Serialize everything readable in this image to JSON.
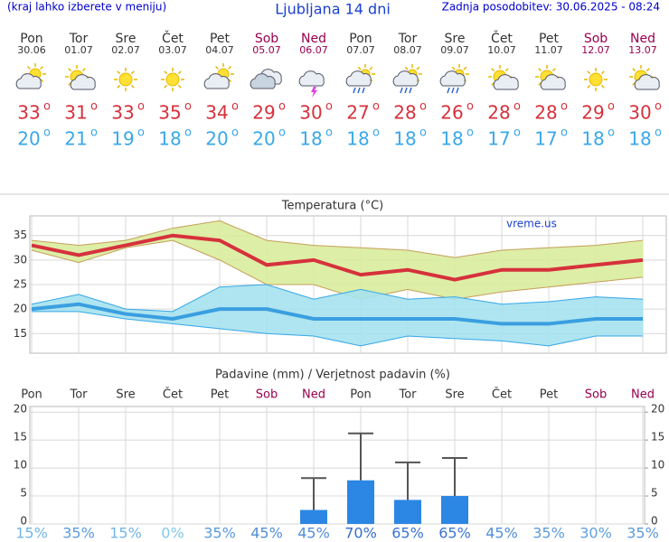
{
  "header": {
    "note": "(kraj lahko izberete v meniju)",
    "title": "Ljubljana 14 dni",
    "updated": "Zadnja posodobitev: 30.06.2025 - 08:24"
  },
  "days": {
    "names": [
      "Pon",
      "Tor",
      "Sre",
      "Čet",
      "Pet",
      "Sob",
      "Ned",
      "Pon",
      "Tor",
      "Sre",
      "Čet",
      "Pet",
      "Sob",
      "Ned"
    ],
    "dates": [
      "30.06",
      "01.07",
      "02.07",
      "03.07",
      "04.07",
      "05.07",
      "06.07",
      "07.07",
      "08.07",
      "09.07",
      "10.07",
      "11.07",
      "12.07",
      "13.07"
    ],
    "max": [
      33,
      31,
      33,
      35,
      34,
      29,
      30,
      27,
      28,
      26,
      28,
      28,
      29,
      30
    ],
    "min": [
      20,
      21,
      19,
      18,
      20,
      20,
      18,
      18,
      18,
      18,
      17,
      17,
      18,
      18
    ],
    "unit": "o"
  },
  "chart_data": [
    {
      "type": "line",
      "title": "Temperatura (°C)",
      "watermark": "vreme.us",
      "categories": [
        null,
        null,
        null,
        null,
        null,
        null,
        null,
        null,
        null,
        null,
        null,
        null,
        null,
        null
      ],
      "series": [
        {
          "kind": "band",
          "color": "#d9ec9c",
          "low": [
            32,
            29.5,
            32.5,
            34,
            30,
            25,
            25,
            22,
            24,
            22,
            23.5,
            24.5,
            25.5,
            26.5
          ],
          "high": [
            34,
            33,
            34,
            36.5,
            38,
            34,
            33,
            32.5,
            32,
            30.5,
            32,
            32.5,
            33,
            34
          ]
        },
        {
          "kind": "band",
          "color": "#a6e2ee",
          "low": [
            19.5,
            19.5,
            18,
            17,
            16,
            15,
            14.5,
            12.5,
            14.5,
            14,
            13.5,
            12.5,
            14.5,
            14.5
          ],
          "high": [
            21,
            23,
            20,
            19.5,
            24.5,
            25,
            22,
            24,
            22,
            22.5,
            21,
            21.5,
            22.5,
            22
          ]
        },
        {
          "kind": "line",
          "color": "#d6313c",
          "values": [
            33,
            31,
            33,
            35,
            34,
            29,
            30,
            27,
            28,
            26,
            28,
            28,
            29,
            30
          ]
        },
        {
          "kind": "line",
          "color": "#3a9fe0",
          "values": [
            20,
            21,
            19,
            18,
            20,
            20,
            18,
            18,
            18,
            18,
            17,
            17,
            18,
            18
          ]
        }
      ],
      "ylim": [
        11,
        39
      ],
      "yticks": [
        15,
        20,
        25,
        30,
        35
      ],
      "grid": true
    },
    {
      "type": "bar",
      "title": "Padavine (mm) / Verjetnost padavin (%)",
      "categories": [
        "Pon",
        "Tor",
        "Sre",
        "Čet",
        "Pet",
        "Sob",
        "Ned",
        "Pon",
        "Tor",
        "Sre",
        "Čet",
        "Pet",
        "Sob",
        "Ned"
      ],
      "values": [
        0,
        0,
        0,
        0,
        0,
        0,
        2.5,
        7.8,
        4.3,
        5.0,
        0,
        0,
        0,
        0
      ],
      "max_values": [
        null,
        null,
        null,
        null,
        null,
        null,
        8.2,
        16.2,
        11,
        11.8,
        null,
        null,
        null,
        null
      ],
      "color": "#2b87e3",
      "probability": {
        "values": [
          15,
          35,
          15,
          0,
          35,
          45,
          45,
          70,
          65,
          65,
          45,
          35,
          30,
          35
        ],
        "value_labels": [
          "15%",
          "35%",
          "15%",
          "0%",
          "35%",
          "45%",
          "45%",
          "70%",
          "65%",
          "65%",
          "45%",
          "35%",
          "30%",
          "35%"
        ]
      },
      "ylim": [
        0,
        21
      ],
      "yticks": [
        0,
        5,
        10,
        15,
        20
      ],
      "y2lim": [
        0,
        21
      ],
      "y2ticks": [
        0,
        5,
        10,
        15,
        20
      ],
      "grid": true
    }
  ]
}
